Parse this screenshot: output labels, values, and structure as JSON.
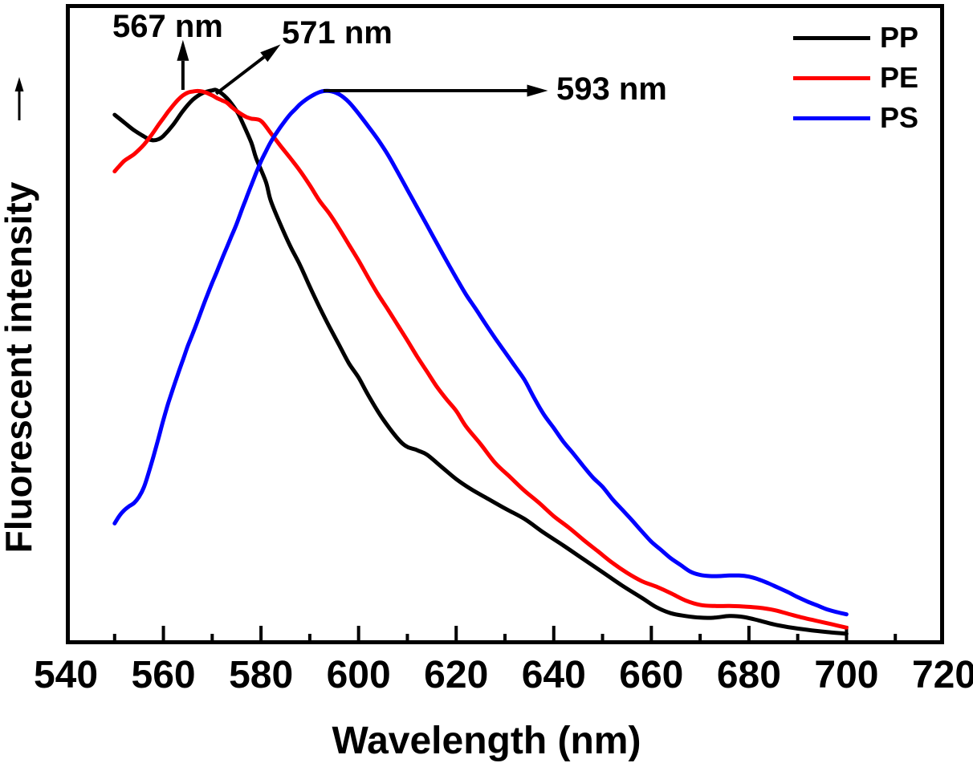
{
  "figure": {
    "background": "#ffffff",
    "frame_color": "#000000"
  },
  "chart_data": {
    "type": "line",
    "title": "",
    "xlabel": "Wavelength (nm)",
    "ylabel": "Fluorescent intensity",
    "ylabel_arrow": "up",
    "x_range": [
      540,
      720
    ],
    "x_major_ticks": [
      540,
      560,
      580,
      600,
      620,
      640,
      660,
      680,
      700,
      720
    ],
    "x_minor_tick_step": 10,
    "y_tick_labels": "none",
    "grid": "off",
    "legend": {
      "position": "top-right",
      "entries": [
        "PP",
        "PE",
        "PS"
      ]
    },
    "series": [
      {
        "name": "PP",
        "color": "#000000",
        "peak_nm": 571,
        "points": [
          [
            550,
            0.955
          ],
          [
            552,
            0.941
          ],
          [
            554,
            0.927
          ],
          [
            556,
            0.916
          ],
          [
            557,
            0.911
          ],
          [
            558,
            0.909
          ],
          [
            559,
            0.911
          ],
          [
            560,
            0.917
          ],
          [
            562,
            0.937
          ],
          [
            564,
            0.962
          ],
          [
            566,
            0.982
          ],
          [
            568,
            0.994
          ],
          [
            570,
            0.999
          ],
          [
            571,
            0.999
          ],
          [
            573,
            0.985
          ],
          [
            575,
            0.962
          ],
          [
            576,
            0.945
          ],
          [
            578,
            0.905
          ],
          [
            579,
            0.877
          ],
          [
            581,
            0.834
          ],
          [
            582,
            0.8
          ],
          [
            584,
            0.757
          ],
          [
            586,
            0.718
          ],
          [
            588,
            0.684
          ],
          [
            590,
            0.645
          ],
          [
            592,
            0.608
          ],
          [
            594,
            0.573
          ],
          [
            596,
            0.54
          ],
          [
            598,
            0.507
          ],
          [
            600,
            0.481
          ],
          [
            602,
            0.449
          ],
          [
            605,
            0.406
          ],
          [
            609,
            0.362
          ],
          [
            612,
            0.35
          ],
          [
            614,
            0.342
          ],
          [
            617,
            0.32
          ],
          [
            620,
            0.298
          ],
          [
            623,
            0.28
          ],
          [
            626,
            0.265
          ],
          [
            630,
            0.245
          ],
          [
            634,
            0.226
          ],
          [
            638,
            0.201
          ],
          [
            642,
            0.178
          ],
          [
            646,
            0.154
          ],
          [
            650,
            0.13
          ],
          [
            654,
            0.106
          ],
          [
            658,
            0.084
          ],
          [
            661,
            0.067
          ],
          [
            664,
            0.056
          ],
          [
            667,
            0.051
          ],
          [
            670,
            0.048
          ],
          [
            673,
            0.048
          ],
          [
            676,
            0.051
          ],
          [
            679,
            0.049
          ],
          [
            682,
            0.043
          ],
          [
            685,
            0.036
          ],
          [
            688,
            0.031
          ],
          [
            692,
            0.026
          ],
          [
            696,
            0.022
          ],
          [
            700,
            0.019
          ]
        ]
      },
      {
        "name": "PE",
        "color": "#ff0000",
        "peak_nm": 567,
        "points": [
          [
            550,
            0.853
          ],
          [
            551,
            0.863
          ],
          [
            552,
            0.872
          ],
          [
            553,
            0.878
          ],
          [
            554,
            0.884
          ],
          [
            555,
            0.892
          ],
          [
            556,
            0.901
          ],
          [
            557,
            0.912
          ],
          [
            558,
            0.924
          ],
          [
            559,
            0.937
          ],
          [
            560,
            0.949
          ],
          [
            561,
            0.961
          ],
          [
            562,
            0.972
          ],
          [
            563,
            0.982
          ],
          [
            564,
            0.99
          ],
          [
            565,
            0.995
          ],
          [
            566,
            0.997
          ],
          [
            567,
            0.998
          ],
          [
            568,
            0.997
          ],
          [
            569,
            0.994
          ],
          [
            570,
            0.99
          ],
          [
            571,
            0.985
          ],
          [
            572,
            0.981
          ],
          [
            573,
            0.977
          ],
          [
            574,
            0.969
          ],
          [
            575,
            0.962
          ],
          [
            576,
            0.956
          ],
          [
            577,
            0.951
          ],
          [
            578,
            0.948
          ],
          [
            580,
            0.944
          ],
          [
            582,
            0.922
          ],
          [
            584,
            0.899
          ],
          [
            586,
            0.877
          ],
          [
            588,
            0.854
          ],
          [
            590,
            0.828
          ],
          [
            592,
            0.8
          ],
          [
            594,
            0.777
          ],
          [
            596,
            0.75
          ],
          [
            598,
            0.721
          ],
          [
            600,
            0.692
          ],
          [
            602,
            0.661
          ],
          [
            604,
            0.631
          ],
          [
            606,
            0.604
          ],
          [
            608,
            0.576
          ],
          [
            610,
            0.548
          ],
          [
            612,
            0.519
          ],
          [
            614,
            0.492
          ],
          [
            616,
            0.465
          ],
          [
            618,
            0.442
          ],
          [
            620,
            0.421
          ],
          [
            622,
            0.393
          ],
          [
            625,
            0.361
          ],
          [
            628,
            0.327
          ],
          [
            631,
            0.302
          ],
          [
            634,
            0.277
          ],
          [
            637,
            0.255
          ],
          [
            640,
            0.231
          ],
          [
            643,
            0.211
          ],
          [
            646,
            0.189
          ],
          [
            649,
            0.168
          ],
          [
            652,
            0.147
          ],
          [
            655,
            0.129
          ],
          [
            658,
            0.114
          ],
          [
            661,
            0.104
          ],
          [
            664,
            0.092
          ],
          [
            667,
            0.079
          ],
          [
            670,
            0.071
          ],
          [
            673,
            0.069
          ],
          [
            676,
            0.069
          ],
          [
            679,
            0.068
          ],
          [
            682,
            0.066
          ],
          [
            685,
            0.062
          ],
          [
            688,
            0.055
          ],
          [
            691,
            0.048
          ],
          [
            694,
            0.042
          ],
          [
            697,
            0.036
          ],
          [
            700,
            0.03
          ]
        ]
      },
      {
        "name": "PS",
        "color": "#0000ff",
        "peak_nm": 593,
        "points": [
          [
            550,
            0.218
          ],
          [
            551,
            0.232
          ],
          [
            552,
            0.242
          ],
          [
            553,
            0.249
          ],
          [
            554,
            0.255
          ],
          [
            555,
            0.266
          ],
          [
            556,
            0.283
          ],
          [
            557,
            0.31
          ],
          [
            558,
            0.34
          ],
          [
            559,
            0.372
          ],
          [
            560,
            0.405
          ],
          [
            561,
            0.435
          ],
          [
            562,
            0.462
          ],
          [
            563,
            0.488
          ],
          [
            564,
            0.513
          ],
          [
            565,
            0.538
          ],
          [
            566,
            0.56
          ],
          [
            567,
            0.583
          ],
          [
            568,
            0.607
          ],
          [
            569,
            0.63
          ],
          [
            570,
            0.652
          ],
          [
            571,
            0.673
          ],
          [
            572,
            0.695
          ],
          [
            573,
            0.716
          ],
          [
            574,
            0.737
          ],
          [
            575,
            0.758
          ],
          [
            576,
            0.782
          ],
          [
            577,
            0.805
          ],
          [
            578,
            0.828
          ],
          [
            579,
            0.85
          ],
          [
            580,
            0.871
          ],
          [
            581,
            0.889
          ],
          [
            582,
            0.906
          ],
          [
            583,
            0.92
          ],
          [
            584,
            0.933
          ],
          [
            585,
            0.945
          ],
          [
            586,
            0.956
          ],
          [
            587,
            0.965
          ],
          [
            588,
            0.974
          ],
          [
            589,
            0.981
          ],
          [
            590,
            0.987
          ],
          [
            591,
            0.992
          ],
          [
            592,
            0.996
          ],
          [
            593,
            0.998
          ],
          [
            594,
            0.998
          ],
          [
            595,
            0.996
          ],
          [
            596,
            0.992
          ],
          [
            597,
            0.986
          ],
          [
            598,
            0.978
          ],
          [
            599,
            0.968
          ],
          [
            600,
            0.957
          ],
          [
            602,
            0.934
          ],
          [
            604,
            0.91
          ],
          [
            606,
            0.883
          ],
          [
            608,
            0.852
          ],
          [
            610,
            0.82
          ],
          [
            612,
            0.788
          ],
          [
            614,
            0.756
          ],
          [
            616,
            0.724
          ],
          [
            618,
            0.692
          ],
          [
            620,
            0.661
          ],
          [
            622,
            0.631
          ],
          [
            624,
            0.605
          ],
          [
            626,
            0.578
          ],
          [
            628,
            0.552
          ],
          [
            630,
            0.527
          ],
          [
            632,
            0.502
          ],
          [
            634,
            0.477
          ],
          [
            636,
            0.444
          ],
          [
            638,
            0.414
          ],
          [
            640,
            0.39
          ],
          [
            642,
            0.365
          ],
          [
            644,
            0.344
          ],
          [
            646,
            0.322
          ],
          [
            648,
            0.301
          ],
          [
            650,
            0.284
          ],
          [
            652,
            0.262
          ],
          [
            654,
            0.243
          ],
          [
            656,
            0.224
          ],
          [
            658,
            0.204
          ],
          [
            660,
            0.185
          ],
          [
            662,
            0.17
          ],
          [
            664,
            0.155
          ],
          [
            666,
            0.143
          ],
          [
            668,
            0.131
          ],
          [
            670,
            0.125
          ],
          [
            672,
            0.123
          ],
          [
            674,
            0.123
          ],
          [
            676,
            0.124
          ],
          [
            678,
            0.124
          ],
          [
            680,
            0.122
          ],
          [
            682,
            0.117
          ],
          [
            684,
            0.11
          ],
          [
            686,
            0.102
          ],
          [
            688,
            0.094
          ],
          [
            690,
            0.085
          ],
          [
            692,
            0.077
          ],
          [
            694,
            0.07
          ],
          [
            696,
            0.063
          ],
          [
            698,
            0.058
          ],
          [
            700,
            0.054
          ]
        ]
      }
    ],
    "annotations": [
      {
        "label": "567 nm",
        "series": "PE",
        "arrow_from": [
          564.0,
          1.0
        ],
        "arrow_to": [
          564.0,
          1.09
        ]
      },
      {
        "label": "571 nm",
        "series": "PP",
        "arrow_from": [
          570.8,
          0.993
        ],
        "arrow_to": [
          584.0,
          1.082
        ]
      },
      {
        "label": "593 nm",
        "series": "PS",
        "arrow_from": [
          592.8,
          0.9985
        ],
        "arrow_to": [
          638.8,
          0.9985
        ]
      }
    ]
  }
}
